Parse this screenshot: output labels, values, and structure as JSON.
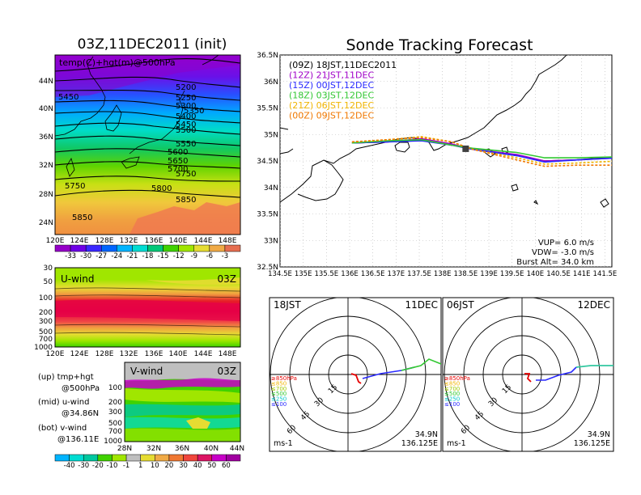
{
  "left_panel": {
    "title": "03Z,11DEC2011 (init)",
    "inner_label": "temp(C)+hgt(m)@500hPa",
    "lat_ticks": [
      "44N",
      "40N",
      "36N",
      "32N",
      "28N",
      "24N"
    ],
    "lon_ticks": [
      "120E",
      "124E",
      "128E",
      "132E",
      "136E",
      "140E",
      "144E",
      "148E"
    ],
    "contour_labels": [
      "5200",
      "5250",
      "5300",
      "5350",
      "5400",
      "5450",
      "5500",
      "5550",
      "5600",
      "5650",
      "5700",
      "5750",
      "5800",
      "5850",
      "5450",
      "5750",
      "5850"
    ],
    "colorbar_labels": [
      "-33",
      "-30",
      "-27",
      "-24",
      "-21",
      "-18",
      "-15",
      "-12",
      "-9",
      "-6",
      "-3"
    ],
    "colorbar_colors": [
      "#9600c8",
      "#6e00e6",
      "#3a28ff",
      "#0066ff",
      "#00b4ff",
      "#00dcd2",
      "#00c878",
      "#40d200",
      "#a0e600",
      "#e6dc32",
      "#f0aa46",
      "#e66e50"
    ]
  },
  "uwind_panel": {
    "label": "U-wind",
    "time": "03Z",
    "y_ticks": [
      "30",
      "50",
      "100",
      "200",
      "300",
      "500",
      "700",
      "1000"
    ],
    "x_ticks": [
      "120E",
      "124E",
      "128E",
      "132E",
      "136E",
      "140E",
      "144E",
      "148E"
    ]
  },
  "vwind_panel": {
    "label": "V-wind",
    "time": "03Z",
    "y_ticks": [
      "100",
      "200",
      "300",
      "500",
      "700",
      "1000"
    ],
    "x_ticks": [
      "28N",
      "32N",
      "36N",
      "40N",
      "44N"
    ]
  },
  "legend_text": [
    {
      "a": "(up) tmp+hgt",
      "b": "@500hPa"
    },
    {
      "a": "(mid) u-wind",
      "b": "@34.86N"
    },
    {
      "a": "(bot) v-wind",
      "b": "@136.11E"
    }
  ],
  "wind_colorbar": {
    "labels": [
      "-40",
      "-30",
      "-20",
      "-10",
      "-1",
      "1",
      "10",
      "20",
      "30",
      "40",
      "50",
      "60"
    ],
    "colors": [
      "#00b4ff",
      "#00dcd2",
      "#00c8a0",
      "#40d200",
      "#a0e600",
      "#bfbfbf",
      "#e6dc32",
      "#f0aa46",
      "#f07832",
      "#f0463c",
      "#dc1464",
      "#c800c8"
    ]
  },
  "tracking": {
    "title": "Sonde Tracking Forecast",
    "runs": [
      {
        "label": "(09Z)  18JST,11DEC2011",
        "color": "#000000"
      },
      {
        "label": "(12Z)  21JST,11DEC",
        "color": "#a000c8"
      },
      {
        "label": "(15Z)  00JST,12DEC",
        "color": "#2828ff"
      },
      {
        "label": "(18Z)  03JST,12DEC",
        "color": "#32c832"
      },
      {
        "label": "(21Z)  06JST,12DEC",
        "color": "#f0b400"
      },
      {
        "label": "(00Z)  09JST,12DEC",
        "color": "#f07800"
      }
    ],
    "lat_ticks": [
      "36.5N",
      "36N",
      "35.5N",
      "35N",
      "34.5N",
      "34N",
      "33.5N",
      "33N",
      "32.5N"
    ],
    "lon_ticks": [
      "134.5E",
      "135E",
      "135.5E",
      "136E",
      "136.5E",
      "137E",
      "137.5E",
      "138E",
      "138.5E",
      "139E",
      "139.5E",
      "140E",
      "140.5E",
      "141E",
      "141.5E"
    ],
    "info": [
      "VUP=  6.0  m/s",
      "VDW= -3.0  m/s",
      "Burst Alt=  34.0  km"
    ]
  },
  "polar_left": {
    "time": "18JST",
    "date": "11DEC",
    "rings": [
      "15",
      "30",
      "45",
      "60"
    ],
    "coord_lat": "34.9N",
    "coord_lon": "136.125E",
    "unit": "ms-1"
  },
  "polar_right": {
    "time": "06JST",
    "date": "12DEC",
    "rings": [
      "15",
      "30",
      "45",
      "60"
    ],
    "coord_lat": "34.9N",
    "coord_lon": "136.125E",
    "unit": "ms-1"
  },
  "polar_legend": [
    {
      "label": "≥850hPa",
      "color": "#e60000"
    },
    {
      "label": "≤850",
      "color": "#f0b400"
    },
    {
      "label": "≤700",
      "color": "#a0c800"
    },
    {
      "label": "≤500",
      "color": "#32c832"
    },
    {
      "label": "≤250",
      "color": "#00c8c8"
    },
    {
      "label": "≤100",
      "color": "#2828ff"
    }
  ],
  "chart_data": [
    {
      "type": "heatmap",
      "title": "03Z,11DEC2011 (init)",
      "subtitle": "temp(C)+hgt(m)@500hPa",
      "xlim": [
        120,
        150
      ],
      "ylim": [
        22,
        47
      ],
      "temperature_levels_C": [
        -33,
        -30,
        -27,
        -24,
        -21,
        -18,
        -15,
        -12,
        -9,
        -6,
        -3
      ],
      "height_contours_m": [
        5200,
        5250,
        5300,
        5350,
        5400,
        5450,
        5500,
        5550,
        5600,
        5650,
        5700,
        5750,
        5800,
        5850
      ]
    },
    {
      "type": "heatmap",
      "title": "U-wind",
      "y_pressure_hPa": [
        30,
        50,
        100,
        200,
        300,
        500,
        700,
        1000
      ],
      "xlim": [
        120,
        150
      ],
      "color_levels": [
        -40,
        -30,
        -20,
        -10,
        -1,
        1,
        10,
        20,
        30,
        40,
        50,
        60
      ]
    },
    {
      "type": "heatmap",
      "title": "V-wind",
      "y_pressure_hPa": [
        100,
        200,
        300,
        500,
        700,
        1000
      ],
      "xlim": [
        28,
        44
      ],
      "color_levels": [
        -40,
        -30,
        -20,
        -10,
        -1,
        1,
        10,
        20,
        30,
        40,
        50,
        60
      ]
    },
    {
      "type": "line",
      "title": "Sonde Tracking Forecast",
      "xlim": [
        134.5,
        141.8
      ],
      "ylim": [
        32.5,
        36.5
      ],
      "series": [
        {
          "name": "(09Z)  18JST,11DEC2011",
          "x": [
            136.05,
            136.8,
            137.55,
            138.2,
            138.65,
            139.6,
            140.2,
            140.9,
            141.8
          ],
          "y": [
            34.84,
            34.86,
            34.9,
            34.8,
            34.72,
            34.6,
            34.5,
            34.52,
            34.58
          ]
        },
        {
          "name": "(12Z)  21JST,11DEC",
          "x": [
            136.05,
            136.8,
            137.55,
            138.2,
            138.65,
            139.6,
            140.2,
            140.9,
            141.8
          ],
          "y": [
            34.84,
            34.86,
            34.92,
            34.82,
            34.72,
            34.62,
            34.5,
            34.52,
            34.56
          ]
        },
        {
          "name": "(15Z)  00JST,12DEC",
          "x": [
            136.05,
            136.8,
            137.55,
            138.2,
            138.65,
            139.6,
            140.2,
            140.9,
            141.8
          ],
          "y": [
            34.84,
            34.86,
            34.88,
            34.8,
            34.72,
            34.6,
            34.48,
            34.52,
            34.56
          ]
        },
        {
          "name": "(18Z)  03JST,12DEC",
          "x": [
            136.05,
            136.8,
            137.55,
            138.2,
            138.65,
            139.6,
            140.2,
            140.9,
            141.8
          ],
          "y": [
            34.84,
            34.88,
            34.9,
            34.8,
            34.74,
            34.66,
            34.56,
            34.56,
            34.58
          ]
        },
        {
          "name": "(21Z)  06JST,12DEC",
          "x": [
            136.05,
            136.8,
            137.55,
            138.2,
            138.65,
            139.6,
            140.2,
            140.9,
            141.8
          ],
          "y": [
            34.86,
            34.9,
            34.96,
            34.86,
            34.72,
            34.56,
            34.44,
            34.46,
            34.5
          ]
        },
        {
          "name": "(00Z)  09JST,12DEC",
          "x": [
            136.05,
            136.8,
            137.55,
            138.2,
            138.65,
            139.6,
            140.2,
            140.9,
            141.8
          ],
          "y": [
            34.86,
            34.9,
            34.94,
            34.86,
            34.72,
            34.52,
            34.4,
            34.42,
            34.42
          ]
        }
      ]
    }
  ]
}
